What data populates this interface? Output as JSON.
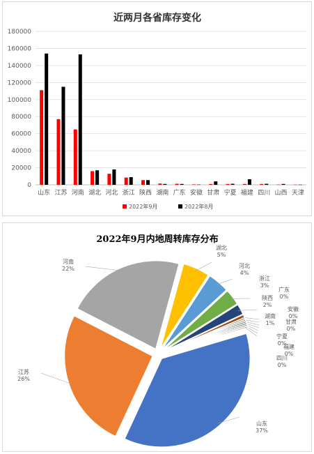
{
  "chart_data": [
    {
      "type": "bar",
      "title": "近两月各省库存变化",
      "categories": [
        "山东",
        "江苏",
        "河南",
        "湖北",
        "河北",
        "浙江",
        "陕西",
        "湖南",
        "广东",
        "安徽",
        "甘肃",
        "宁夏",
        "福建",
        "四川",
        "山西",
        "天津"
      ],
      "series": [
        {
          "name": "2022年9月",
          "color": "#ff0000",
          "values": [
            111000,
            77000,
            65000,
            16000,
            13000,
            8500,
            5500,
            1500,
            1200,
            500,
            1000,
            1000,
            1000,
            1000,
            300,
            200
          ]
        },
        {
          "name": "2022年8月",
          "color": "#000000",
          "values": [
            154000,
            115000,
            153000,
            17000,
            18000,
            9000,
            5500,
            1000,
            1000,
            300,
            4000,
            1200,
            6500,
            1200,
            1000,
            200
          ]
        }
      ],
      "ylim": [
        0,
        180000
      ],
      "yticks": [
        "0",
        "20000",
        "40000",
        "60000",
        "80000",
        "100000",
        "120000",
        "140000",
        "160000",
        "180000"
      ],
      "grid": true,
      "legend": "bottom"
    },
    {
      "type": "pie",
      "title": "2022年9月内地周转库存分布",
      "slices": [
        {
          "label": "山东",
          "pct": "37%",
          "value": 37,
          "color": "#4472c4"
        },
        {
          "label": "江苏",
          "pct": "26%",
          "value": 26,
          "color": "#ed7d31"
        },
        {
          "label": "河南",
          "pct": "22%",
          "value": 22,
          "color": "#a5a5a5"
        },
        {
          "label": "湖北",
          "pct": "5%",
          "value": 5,
          "color": "#ffc000"
        },
        {
          "label": "河北",
          "pct": "4%",
          "value": 4,
          "color": "#5b9bd5"
        },
        {
          "label": "浙江",
          "pct": "3%",
          "value": 3,
          "color": "#70ad47"
        },
        {
          "label": "陕西",
          "pct": "2%",
          "value": 2,
          "color": "#264478"
        },
        {
          "label": "湖南",
          "pct": "1%",
          "value": 0.6,
          "color": "#9e480e"
        },
        {
          "label": "广东",
          "pct": "0%",
          "value": 0.3,
          "color": "#636363"
        },
        {
          "label": "安徽",
          "pct": "0%",
          "value": 0.3,
          "color": "#997300"
        },
        {
          "label": "甘肃",
          "pct": "0%",
          "value": 0.3,
          "color": "#255e91"
        },
        {
          "label": "宁夏",
          "pct": "0%",
          "value": 0.3,
          "color": "#43682b"
        },
        {
          "label": "福建",
          "pct": "0%",
          "value": 0.3,
          "color": "#698ed0"
        },
        {
          "label": "四川",
          "pct": "0%",
          "value": 0.3,
          "color": "#f1975a"
        }
      ]
    }
  ]
}
